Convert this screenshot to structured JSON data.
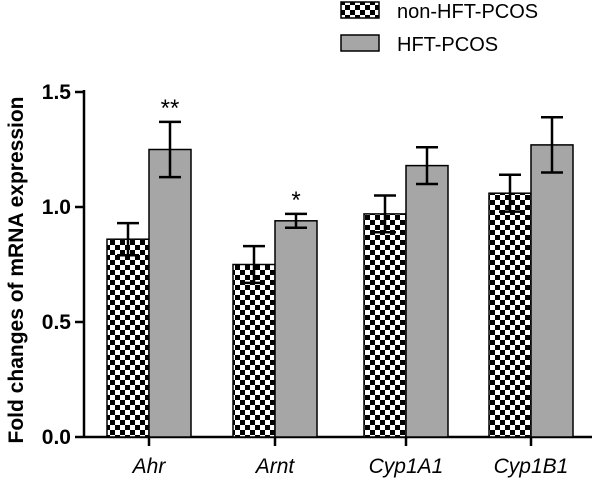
{
  "chart_data": {
    "type": "bar",
    "title": "",
    "xlabel": "",
    "ylabel": "Fold changes of mRNA expression",
    "ylim": [
      0,
      1.5
    ],
    "yticks": [
      "0.0",
      "0.5",
      "1.0",
      "1.5"
    ],
    "ytick_values": [
      0,
      0.5,
      1.0,
      1.5
    ],
    "categories": [
      "Ahr",
      "Arnt",
      "Cyp1A1",
      "Cyp1B1"
    ],
    "series": [
      {
        "name": "non-HFT-PCOS",
        "pattern": "checkerboard",
        "color": "#000000",
        "values": [
          0.86,
          0.75,
          0.97,
          1.06
        ],
        "errors": [
          0.07,
          0.08,
          0.08,
          0.08
        ],
        "significance": [
          "",
          "",
          "",
          ""
        ]
      },
      {
        "name": "HFT-PCOS",
        "pattern": "solid",
        "color": "#a6a6a6",
        "values": [
          1.25,
          0.94,
          1.18,
          1.27
        ],
        "errors": [
          0.12,
          0.03,
          0.08,
          0.12
        ],
        "significance": [
          "**",
          "*",
          "",
          ""
        ]
      }
    ],
    "legend_position": "top-right",
    "grid": false
  }
}
